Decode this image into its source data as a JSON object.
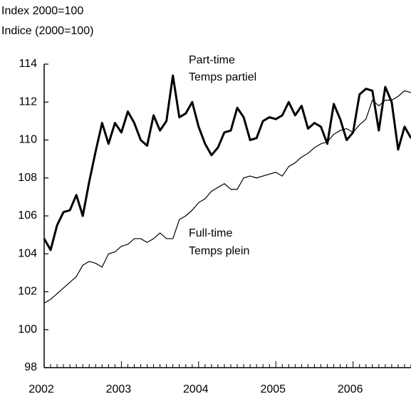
{
  "chart_data": {
    "type": "line",
    "ylabel": [
      "Index 2000=100",
      "Indice (2000=100)"
    ],
    "categories": [
      "2002",
      null,
      null,
      null,
      null,
      null,
      null,
      null,
      null,
      null,
      null,
      null,
      "2003",
      null,
      null,
      null,
      null,
      null,
      null,
      null,
      null,
      null,
      null,
      null,
      "2004",
      null,
      null,
      null,
      null,
      null,
      null,
      null,
      null,
      null,
      null,
      null,
      "2005",
      null,
      null,
      null,
      null,
      null,
      null,
      null,
      null,
      null,
      null,
      null,
      "2006",
      null,
      null,
      null,
      null,
      null,
      null,
      null,
      null,
      null
    ],
    "series": [
      {
        "name": [
          "Part-time",
          "Temps partiel"
        ],
        "color": "#000000",
        "width": 3,
        "values": [
          104.8,
          104.2,
          105.5,
          106.2,
          106.3,
          107.1,
          106.0,
          107.8,
          109.4,
          110.9,
          109.8,
          110.9,
          110.4,
          111.5,
          110.9,
          110.0,
          109.7,
          111.3,
          110.5,
          111.0,
          113.4,
          111.2,
          111.4,
          112.0,
          110.7,
          109.8,
          109.2,
          109.6,
          110.4,
          110.5,
          111.7,
          111.2,
          110.0,
          110.1,
          111.0,
          111.2,
          111.1,
          111.3,
          112.0,
          111.3,
          111.8,
          110.6,
          110.9,
          110.7,
          109.8,
          111.9,
          111.1,
          110.0,
          110.4,
          112.4,
          112.7,
          112.6,
          110.5,
          112.8,
          112.0,
          109.5,
          110.7,
          110.1
        ]
      },
      {
        "name": [
          "Full-time",
          "Temps plein"
        ],
        "color": "#000000",
        "width": 1.2,
        "values": [
          101.4,
          101.6,
          101.9,
          102.2,
          102.5,
          102.8,
          103.4,
          103.6,
          103.5,
          103.3,
          104.0,
          104.1,
          104.4,
          104.5,
          104.8,
          104.8,
          104.6,
          104.8,
          105.1,
          104.8,
          104.8,
          105.8,
          106.0,
          106.3,
          106.7,
          106.9,
          107.3,
          107.5,
          107.7,
          107.4,
          107.4,
          108.0,
          108.1,
          108.0,
          108.1,
          108.2,
          108.3,
          108.1,
          108.6,
          108.8,
          109.1,
          109.3,
          109.6,
          109.8,
          109.9,
          110.3,
          110.5,
          110.6,
          110.4,
          110.8,
          111.1,
          112.1,
          111.8,
          112.1,
          112.1,
          112.3,
          112.6,
          112.5
        ]
      }
    ],
    "ylim": [
      98,
      114
    ],
    "yticks": [
      98,
      100,
      102,
      104,
      106,
      108,
      110,
      112,
      114
    ]
  }
}
